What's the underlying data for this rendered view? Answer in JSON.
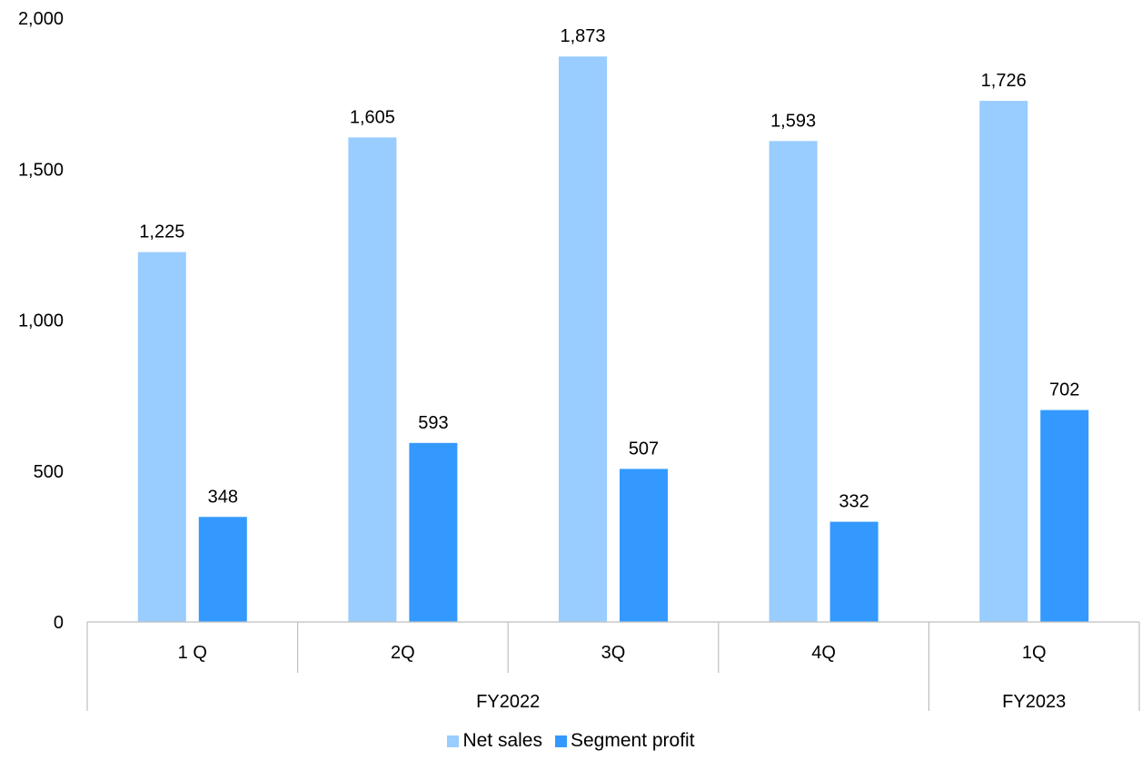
{
  "chart_data": {
    "type": "bar",
    "categories": [
      "1 Q",
      "2Q",
      "3Q",
      "4Q",
      "1Q"
    ],
    "groups": [
      {
        "label": "FY2022",
        "categories": [
          "1 Q",
          "2Q",
          "3Q",
          "4Q"
        ]
      },
      {
        "label": "FY2023",
        "categories": [
          "1Q"
        ]
      }
    ],
    "series": [
      {
        "name": "Net sales",
        "color": "#99ccff",
        "values": [
          1225,
          1605,
          1873,
          1593,
          1726
        ]
      },
      {
        "name": "Segment profit",
        "color": "#3399ff",
        "values": [
          348,
          593,
          507,
          332,
          702
        ]
      }
    ],
    "data_labels": [
      [
        "1,225",
        "1,605",
        "1,873",
        "1,593",
        "1,726"
      ],
      [
        "348",
        "593",
        "507",
        "332",
        "702"
      ]
    ],
    "y_ticks": [
      "0",
      "500",
      "1,000",
      "1,500",
      "2,000"
    ],
    "ylim": [
      0,
      2000
    ],
    "grid": false,
    "legend_position": "bottom"
  }
}
